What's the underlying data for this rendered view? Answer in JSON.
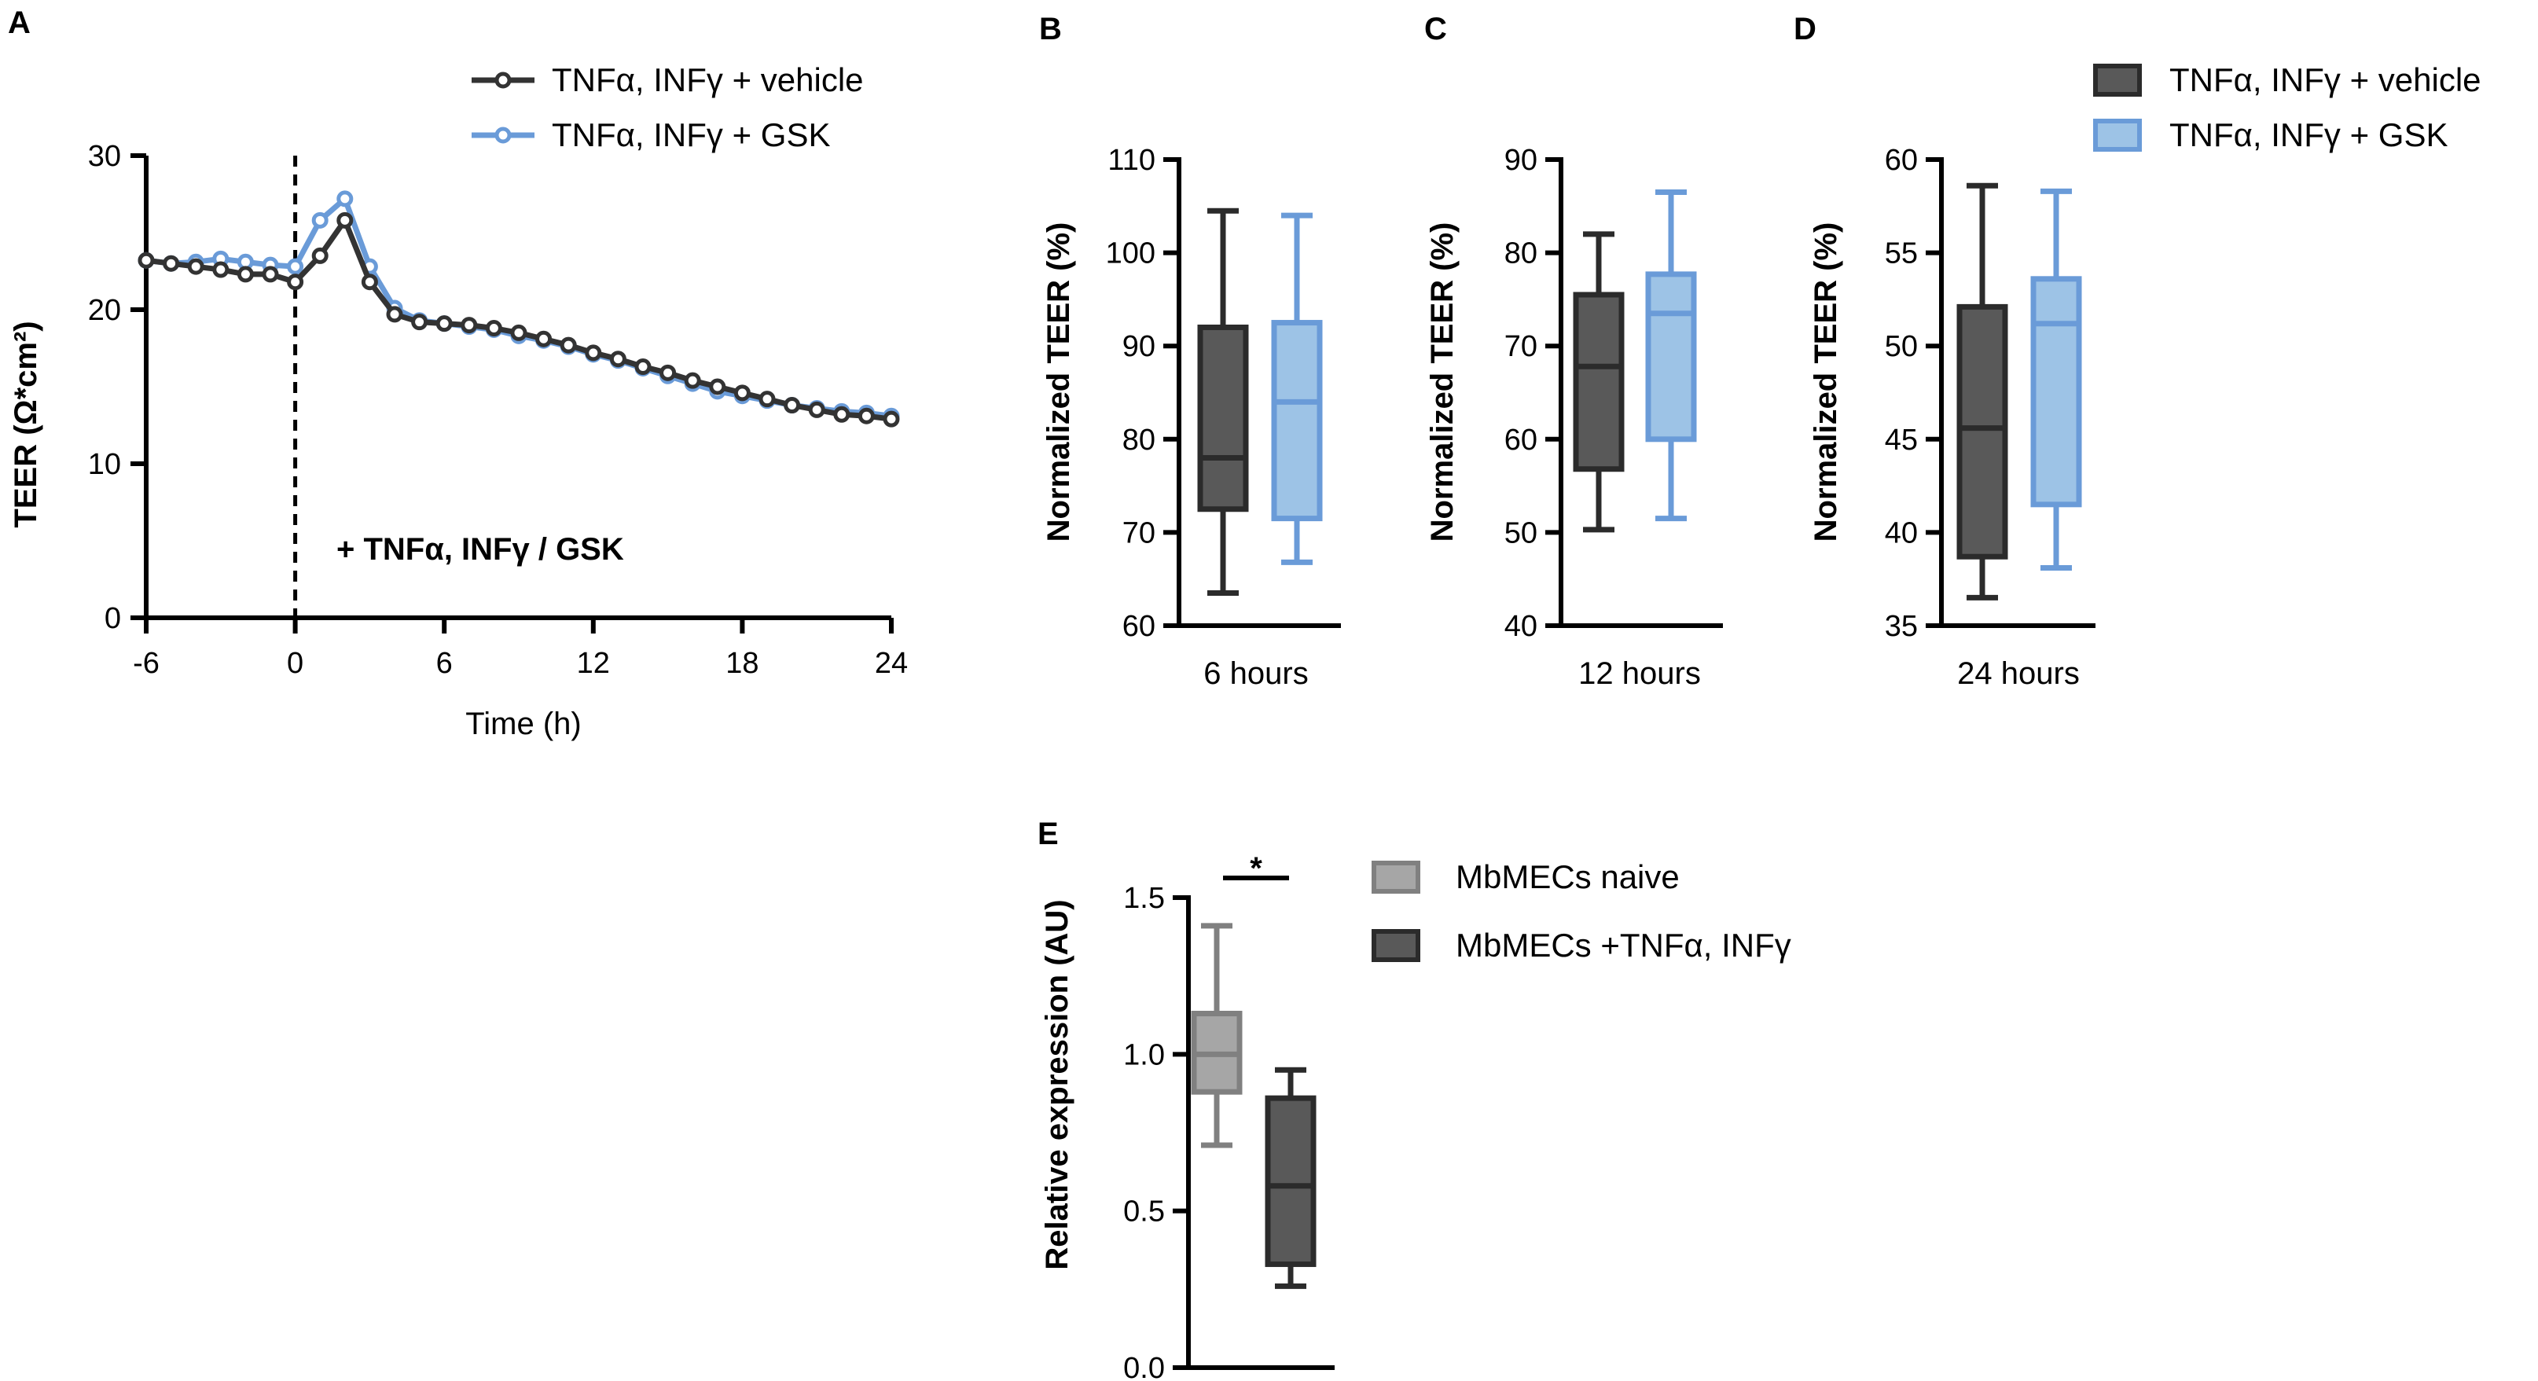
{
  "chart_data": [
    {
      "panel": "A",
      "type": "line",
      "xlabel": "Time (h)",
      "ylabel": "TEER (Ω*cm²)",
      "xlim": [
        -6,
        24
      ],
      "ylim": [
        0,
        30
      ],
      "xticks": [
        "-6",
        "0",
        "6",
        "12",
        "18",
        "24"
      ],
      "yticks": [
        "0",
        "10",
        "20",
        "30"
      ],
      "annotation": "+ TNFα, INFγ / GSK",
      "vline_x": 0,
      "colors": {
        "vehicle": "#333333",
        "gsk": "#6a9bd8"
      },
      "x": [
        -6,
        -5,
        -4,
        -3,
        -2,
        -1,
        0,
        1,
        2,
        3,
        4,
        5,
        6,
        7,
        8,
        9,
        10,
        11,
        12,
        13,
        14,
        15,
        16,
        17,
        18,
        19,
        20,
        21,
        22,
        23,
        24
      ],
      "series": [
        {
          "name": "TNFα, INFγ + vehicle",
          "key": "vehicle",
          "values": [
            23.2,
            23.0,
            22.8,
            22.6,
            22.3,
            22.3,
            21.8,
            23.5,
            25.8,
            21.8,
            19.7,
            19.2,
            19.1,
            19.0,
            18.8,
            18.5,
            18.1,
            17.7,
            17.2,
            16.8,
            16.3,
            15.9,
            15.4,
            15.0,
            14.6,
            14.2,
            13.8,
            13.5,
            13.2,
            13.1,
            12.9
          ]
        },
        {
          "name": "TNFα, INFγ + GSK",
          "key": "gsk",
          "values": [
            23.2,
            23.0,
            23.1,
            23.3,
            23.1,
            22.9,
            22.8,
            25.8,
            27.2,
            22.8,
            20.1,
            19.3,
            19.1,
            18.9,
            18.7,
            18.3,
            18.0,
            17.6,
            17.1,
            16.7,
            16.2,
            15.7,
            15.2,
            14.7,
            14.4,
            14.1,
            13.8,
            13.6,
            13.4,
            13.3,
            13.1
          ]
        }
      ]
    },
    {
      "panel": "B",
      "type": "box",
      "xlabel": "6 hours",
      "ylabel": "Normalized TEER (%)",
      "ylim": [
        60,
        110
      ],
      "yticks": [
        "60",
        "70",
        "80",
        "90",
        "100",
        "110"
      ],
      "series": [
        {
          "name": "TNFα, INFγ + vehicle",
          "min": 63.5,
          "q1": 72.5,
          "median": 78,
          "q3": 92,
          "max": 104.5
        },
        {
          "name": "TNFα, INFγ + GSK",
          "min": 66.8,
          "q1": 71.5,
          "median": 84,
          "q3": 92.5,
          "max": 104
        }
      ]
    },
    {
      "panel": "C",
      "type": "box",
      "xlabel": "12 hours",
      "ylabel": "Normalized TEER (%)",
      "ylim": [
        40,
        90
      ],
      "yticks": [
        "40",
        "50",
        "60",
        "70",
        "80",
        "90"
      ],
      "series": [
        {
          "name": "TNFα, INFγ + vehicle",
          "min": 50.3,
          "q1": 56.8,
          "median": 67.8,
          "q3": 75.5,
          "max": 82
        },
        {
          "name": "TNFα, INFγ + GSK",
          "min": 51.5,
          "q1": 60,
          "median": 73.5,
          "q3": 77.7,
          "max": 86.5
        }
      ]
    },
    {
      "panel": "D",
      "type": "box",
      "xlabel": "24 hours",
      "ylabel": "Normalized TEER (%)",
      "ylim": [
        35,
        60
      ],
      "yticks": [
        "35",
        "40",
        "45",
        "50",
        "55",
        "60"
      ],
      "series": [
        {
          "name": "TNFα, INFγ + vehicle",
          "min": 36.5,
          "q1": 38.7,
          "median": 45.6,
          "q3": 52.1,
          "max": 58.6
        },
        {
          "name": "TNFα, INFγ + GSK",
          "min": 38.1,
          "q1": 41.5,
          "median": 51.2,
          "q3": 53.6,
          "max": 58.3
        }
      ]
    },
    {
      "panel": "E",
      "type": "box",
      "xlabel": "",
      "ylabel": "Relative expression (AU)",
      "ylim": [
        0,
        1.5
      ],
      "yticks": [
        "0.0",
        "0.5",
        "1.0",
        "1.5"
      ],
      "significance": "*",
      "series": [
        {
          "name": "MbMECs naive",
          "min": 0.71,
          "q1": 0.88,
          "median": 1.0,
          "q3": 1.13,
          "max": 1.41
        },
        {
          "name": "MbMECs +TNFα, INFγ",
          "min": 0.26,
          "q1": 0.33,
          "median": 0.58,
          "q3": 0.86,
          "max": 0.95
        }
      ]
    }
  ],
  "legends": {
    "line": [
      "TNFα, INFγ + vehicle",
      "TNFα, INFγ + GSK"
    ],
    "box": [
      "TNFα, INFγ + vehicle",
      "TNFα, INFγ + GSK"
    ],
    "expression": [
      "MbMECs naive",
      "MbMECs +TNFα, INFγ"
    ]
  },
  "colors": {
    "vehicle_fill": "#595959",
    "vehicle_stroke": "#2b2b2b",
    "gsk_fill": "#9dc3e6",
    "gsk_stroke": "#6a9bd8",
    "naive_fill": "#a6a6a6",
    "naive_stroke": "#808080"
  }
}
